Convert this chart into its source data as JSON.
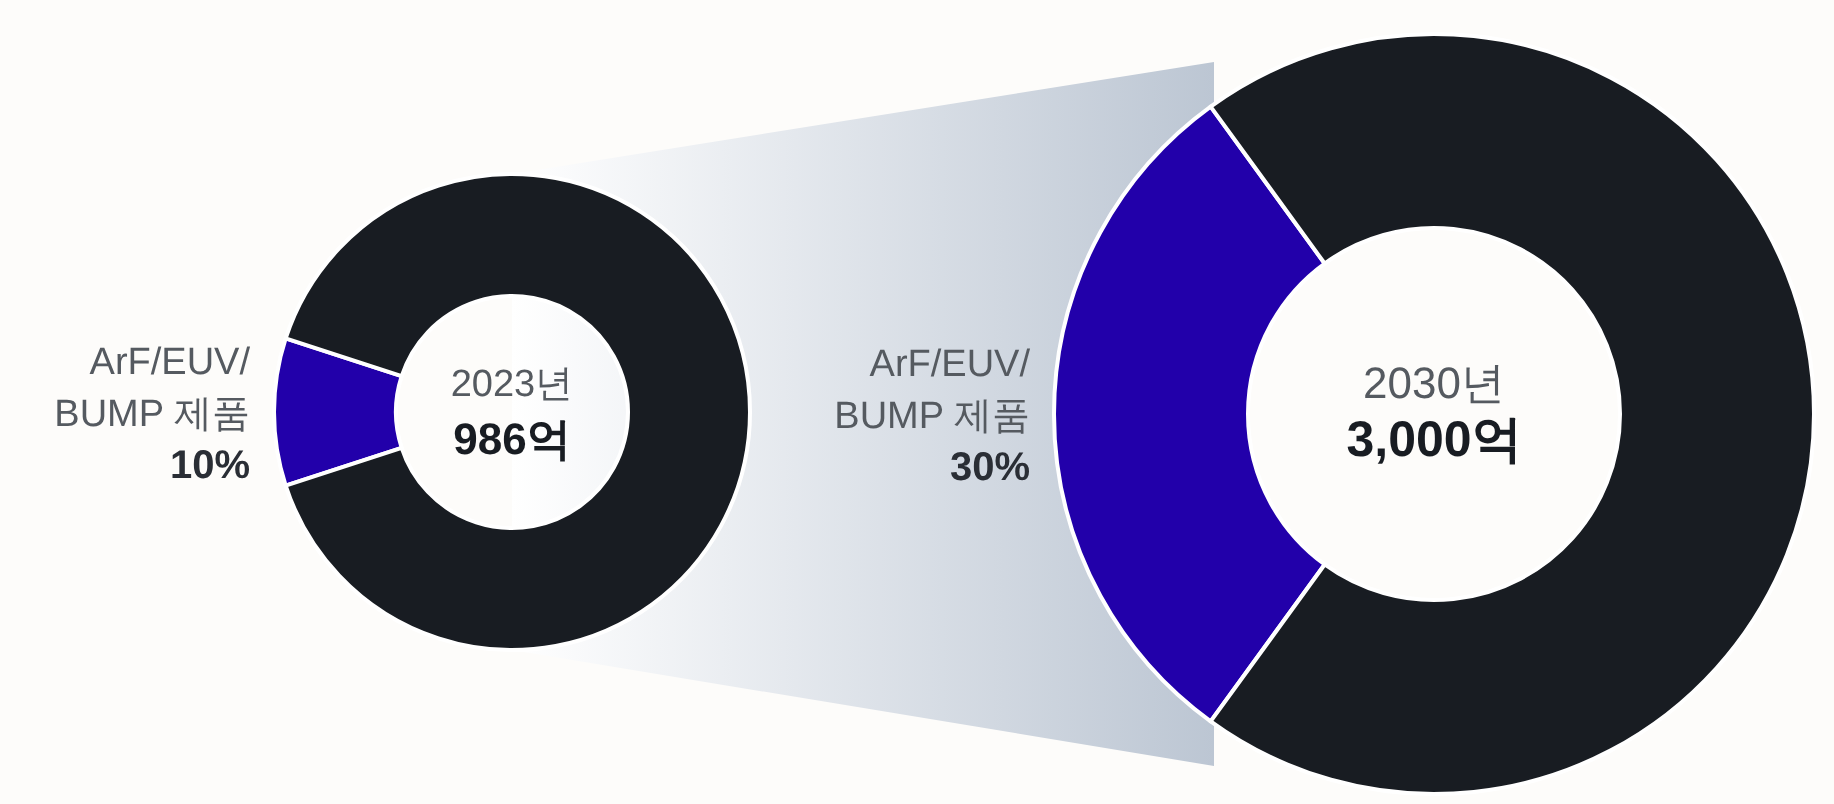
{
  "chart_data": [
    {
      "type": "donut",
      "title": "2023년",
      "subtitle": "986억",
      "categories": [
        "ArF/EUV/\nBUMP 제품",
        null
      ],
      "values": [
        10,
        90
      ],
      "colors": [
        "#2200aa",
        "#181c22"
      ],
      "value_labels": [
        "10%",
        null
      ]
    },
    {
      "type": "donut",
      "title": "2030년",
      "subtitle": "3,000억",
      "categories": [
        "ArF/EUV/\nBUMP 제품",
        null
      ],
      "values": [
        30,
        70
      ],
      "colors": [
        "#2200aa",
        "#181c22"
      ],
      "value_labels": [
        "30%",
        null
      ]
    }
  ]
}
